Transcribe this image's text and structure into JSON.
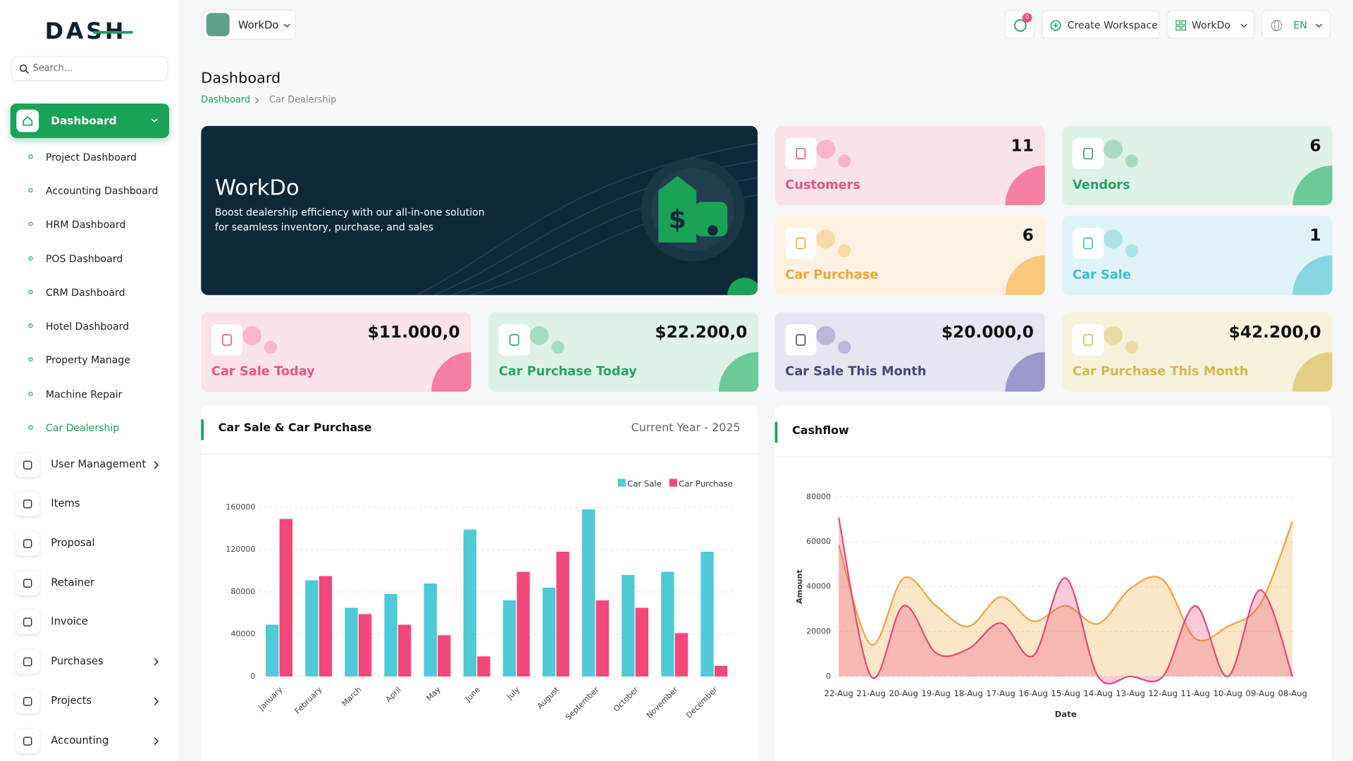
{
  "sidebar": {
    "logo": "DASH",
    "search_placeholder": "Search...",
    "active": "Dashboard",
    "submenu": [
      "Project Dashboard",
      "Accounting Dashboard",
      "HRM Dashboard",
      "POS Dashboard",
      "CRM Dashboard",
      "Hotel Dashboard",
      "Property Manage",
      "Machine Repair",
      "Car Dealership"
    ],
    "menu": [
      "User Management",
      "Items",
      "Proposal",
      "Retainer",
      "Invoice",
      "Purchases",
      "Projects",
      "Accounting"
    ]
  },
  "header": {
    "workspace": "WorkDo",
    "notifications": 0,
    "create_workspace": "Create Workspace",
    "user": "WorkDo",
    "language": "EN"
  },
  "page": {
    "title": "Dashboard",
    "breadcrumb": [
      "Dashboard",
      "Car Dealership"
    ]
  },
  "banner": {
    "title": "WorkDo",
    "text": "Boost dealership efficiency with our all-in-one solution for seamless inventory, purchase, and sales"
  },
  "stats": [
    {
      "label": "Customers",
      "value": 11
    },
    {
      "label": "Vendors",
      "value": 6
    },
    {
      "label": "Car Purchase",
      "value": 6
    },
    {
      "label": "Car Sale",
      "value": 1
    }
  ],
  "amounts": [
    {
      "label": "Car Sale Today",
      "value": "$11.000,0"
    },
    {
      "label": "Car Purchase Today",
      "value": "$22.200,0"
    },
    {
      "label": "Car Sale This Month",
      "value": "$20.000,0"
    },
    {
      "label": "Car Purchase This Month",
      "value": "$42.200,0"
    }
  ],
  "chart_data": [
    {
      "type": "bar",
      "title": "Car Sale & Car Purchase",
      "subtitle": "Current Year - 2025",
      "categories": [
        "January",
        "February",
        "March",
        "April",
        "May",
        "June",
        "July",
        "August",
        "September",
        "October",
        "November",
        "December"
      ],
      "series": [
        {
          "name": "Car Sale",
          "color": "#4fcad6",
          "values": [
            49000,
            91000,
            65000,
            78000,
            88000,
            139000,
            72000,
            84000,
            158000,
            96000,
            99000,
            118000
          ]
        },
        {
          "name": "Car Purchase",
          "color": "#f2487c",
          "values": [
            149000,
            95000,
            59000,
            49000,
            39000,
            19000,
            99000,
            118000,
            72000,
            65000,
            41000,
            10000
          ]
        }
      ],
      "ylim": [
        0,
        160000
      ],
      "yticks": [
        0,
        40000,
        80000,
        120000,
        160000
      ],
      "grid": true,
      "legend": "top-right"
    },
    {
      "type": "area",
      "title": "Cashflow",
      "xlabel": "Date",
      "ylabel": "Amount",
      "categories": [
        "22-Aug",
        "21-Aug",
        "20-Aug",
        "19-Aug",
        "18-Aug",
        "17-Aug",
        "16-Aug",
        "15-Aug",
        "14-Aug",
        "13-Aug",
        "12-Aug",
        "11-Aug",
        "10-Aug",
        "09-Aug",
        "08-Aug"
      ],
      "series": [
        {
          "color": "#f2a43a",
          "values": [
            58500,
            14200,
            43800,
            31500,
            22300,
            35400,
            24600,
            31500,
            23500,
            39200,
            43100,
            16900,
            22300,
            32300,
            69200
          ]
        },
        {
          "color": "#e8457a",
          "values": [
            70800,
            0,
            31500,
            10400,
            12300,
            23800,
            9200,
            43800,
            0,
            0,
            0,
            31500,
            0,
            38500,
            0
          ]
        }
      ],
      "ylim": [
        0,
        80000
      ],
      "yticks": [
        0,
        20000,
        40000,
        60000,
        80000
      ],
      "grid": true
    }
  ]
}
